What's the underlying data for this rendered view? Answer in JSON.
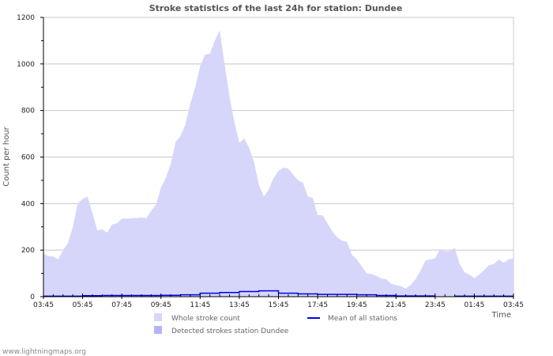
{
  "chart_data": {
    "type": "area",
    "title": "Stroke statistics of the last 24h for station: Dundee",
    "xlabel": "Time",
    "ylabel": "Count per hour",
    "ylim": [
      0,
      1200
    ],
    "yticks": [
      "0",
      "200",
      "400",
      "600",
      "800",
      "1000",
      "1200"
    ],
    "xticks": [
      "03:45",
      "05:45",
      "07:45",
      "09:45",
      "11:45",
      "13:45",
      "15:45",
      "17:45",
      "19:45",
      "21:45",
      "23:45",
      "01:45",
      "03:45"
    ],
    "x_hours_span": 24,
    "grid": true,
    "legend_placement": "bottom",
    "series": [
      {
        "name": "Whole stroke count",
        "color": "#d6d6fb",
        "step_hours": 0.25,
        "values": [
          185,
          175,
          172,
          160,
          200,
          230,
          300,
          400,
          420,
          430,
          360,
          285,
          290,
          275,
          310,
          315,
          335,
          335,
          337,
          338,
          340,
          338,
          370,
          395,
          470,
          510,
          570,
          665,
          690,
          740,
          830,
          900,
          990,
          1040,
          1045,
          1100,
          1145,
          1000,
          860,
          750,
          660,
          680,
          640,
          580,
          480,
          430,
          460,
          510,
          540,
          555,
          550,
          525,
          500,
          490,
          430,
          425,
          350,
          350,
          315,
          280,
          255,
          240,
          235,
          180,
          160,
          130,
          100,
          97,
          90,
          78,
          75,
          55,
          50,
          45,
          35,
          50,
          75,
          110,
          155,
          160,
          165,
          205,
          195,
          195,
          210,
          140,
          105,
          95,
          80,
          95,
          115,
          135,
          140,
          160,
          145,
          160,
          165
        ]
      },
      {
        "name": "Detected strokes station Dundee",
        "color": "#b4b4f5",
        "step_hours": 1,
        "values": [
          0,
          0,
          0,
          0,
          0,
          0,
          0,
          0,
          0,
          0,
          0,
          0,
          0,
          0,
          0,
          0,
          0,
          0,
          0,
          0,
          0,
          0,
          0,
          0,
          0
        ]
      },
      {
        "name": "Mean of all stations",
        "color": "#0000ee",
        "step_hours": 1,
        "values": [
          2,
          2,
          4,
          5,
          5,
          5,
          6,
          8,
          15,
          18,
          22,
          25,
          15,
          12,
          10,
          10,
          8,
          5,
          3,
          3,
          null,
          2,
          2,
          2,
          2
        ]
      }
    ]
  },
  "footer": "www.lightningmaps.org"
}
